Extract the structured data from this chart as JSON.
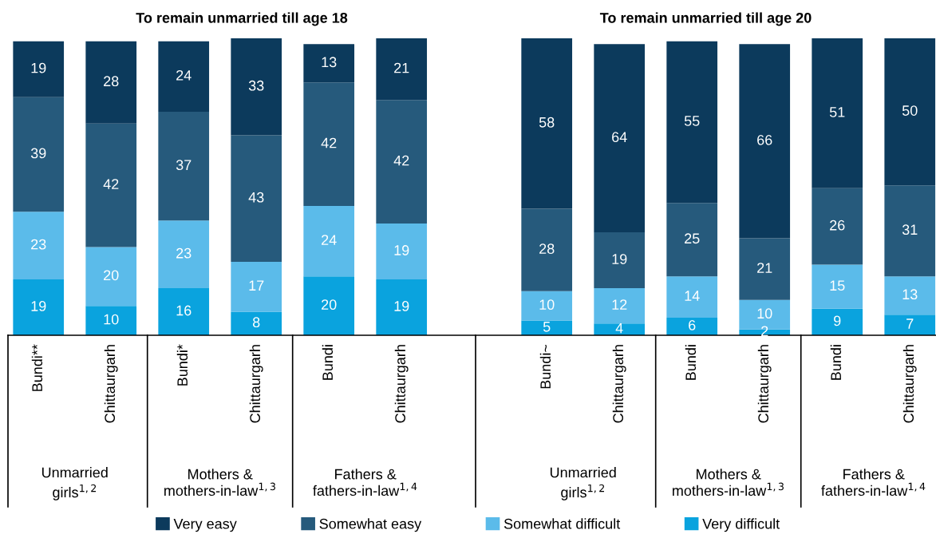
{
  "chart_data": [
    {
      "type": "bar",
      "stacked": true,
      "data_labels": true,
      "legend": "bottom",
      "title": "To remain unmarried till age 18",
      "categories": [
        "Bundi**",
        "Chittaurgarh",
        "Bundi*",
        "Chittaurgarh",
        "Bundi",
        "Chittaurgarh"
      ],
      "series": [
        {
          "name": "Very difficult",
          "color": "#0aa3de",
          "values": [
            19,
            10,
            16,
            8,
            20,
            19
          ]
        },
        {
          "name": "Somewhat difficult",
          "color": "#5bbbea",
          "values": [
            23,
            20,
            23,
            17,
            24,
            19
          ]
        },
        {
          "name": "Somewhat easy",
          "color": "#265a7c",
          "values": [
            39,
            42,
            37,
            43,
            42,
            42
          ]
        },
        {
          "name": "Very easy",
          "color": "#0c3a5c",
          "values": [
            19,
            28,
            24,
            33,
            13,
            21
          ]
        }
      ],
      "annotations": [
        "Unmarried\ngirls$^{1,2}$",
        "Mothers &\nmothers-in-law$^{1,3}$",
        "Fathers &\nfathers-in-law$^{1,4}$"
      ]
    },
    {
      "type": "bar",
      "stacked": true,
      "data_labels": true,
      "title": "To remain unmarried till age 20",
      "categories": [
        "Bundi~",
        "Chittaurgarh",
        "Bundi",
        "Chittaurgarh",
        "Bundi",
        "Chittaurgarh"
      ],
      "series": [
        {
          "color": "#0aa3de",
          "values": [
            5,
            4,
            6,
            2,
            9,
            7
          ]
        },
        {
          "color": "#5bbbea",
          "values": [
            10,
            12,
            14,
            10,
            15,
            13
          ]
        },
        {
          "color": "#265a7c",
          "values": [
            28,
            19,
            25,
            21,
            26,
            31
          ]
        },
        {
          "color": "#0c3a5c",
          "values": [
            58,
            64,
            55,
            66,
            51,
            50
          ]
        }
      ],
      "annotations": [
        "Unmarried\ngirls$^{1,2}$",
        "Mothers &\nmothers-in-law$^{1,3}$",
        "Fathers &\nfathers-in-law$^{1,4}$"
      ]
    }
  ]
}
